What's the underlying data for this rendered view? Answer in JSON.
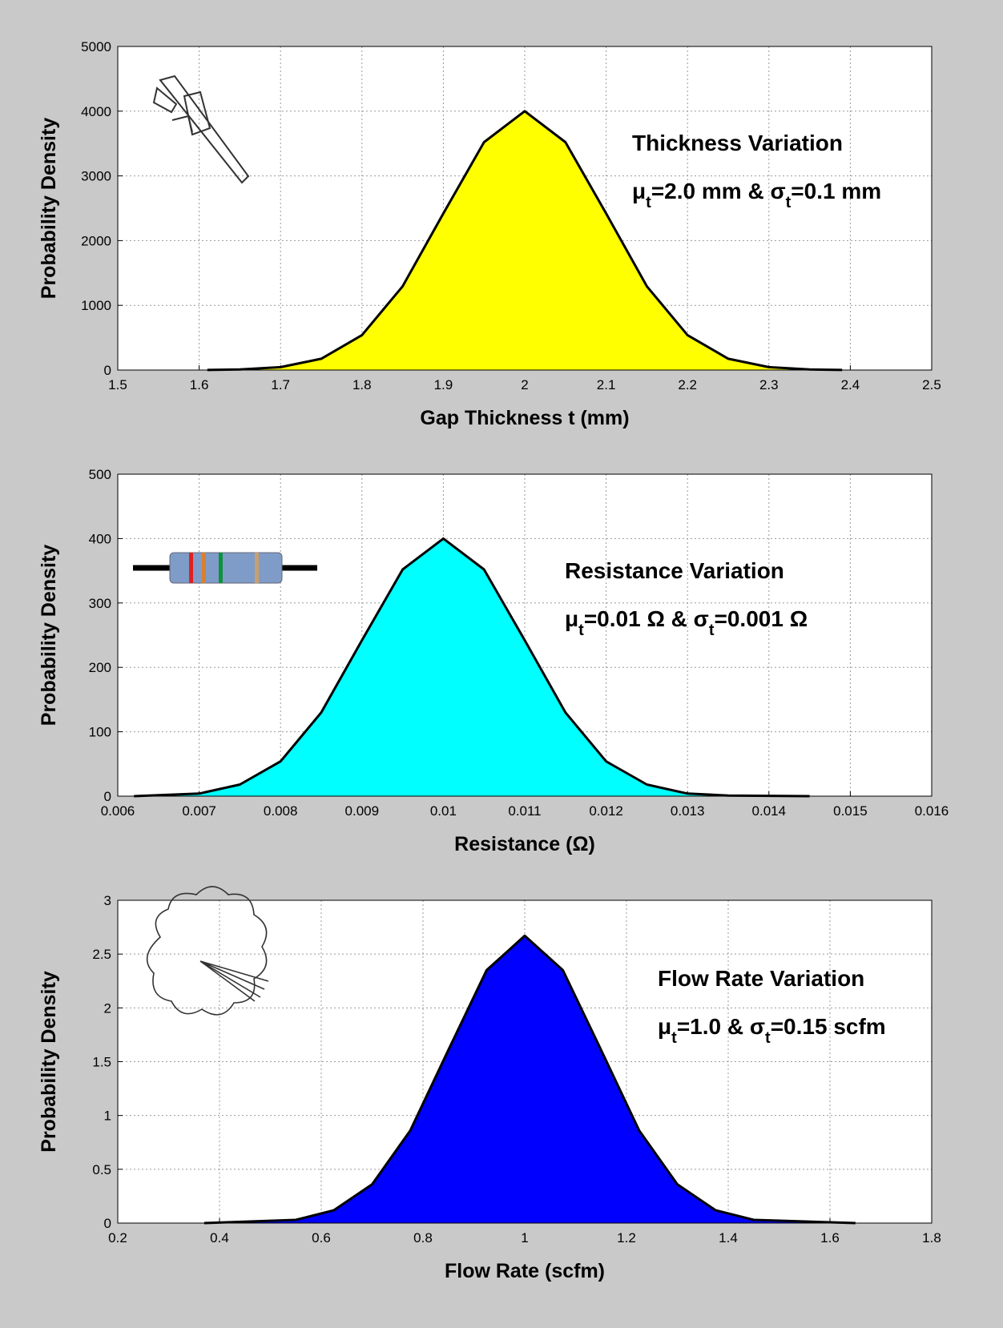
{
  "chart_data": [
    {
      "type": "area",
      "xlabel": "Gap Thickness t (mm)",
      "ylabel": "Probability Density",
      "annotation_title": "Thickness Variation",
      "annotation_parts": [
        "μ",
        "t",
        "=2.0 mm & σ",
        "t",
        "=0.1 mm"
      ],
      "x": [
        1.61,
        1.65,
        1.7,
        1.75,
        1.8,
        1.85,
        1.9,
        1.95,
        2.0,
        2.05,
        2.1,
        2.15,
        2.2,
        2.25,
        2.3,
        2.35,
        2.39
      ],
      "values": [
        1,
        9,
        44,
        175,
        540,
        1295,
        2420,
        3521,
        4000,
        3521,
        2420,
        1295,
        540,
        175,
        44,
        9,
        1
      ],
      "color": "#ffff00",
      "xlim": [
        1.5,
        2.5
      ],
      "xticks": [
        1.5,
        1.6,
        1.7,
        1.8,
        1.9,
        2,
        2.1,
        2.2,
        2.3,
        2.4,
        2.5
      ],
      "ylim": [
        0,
        5000
      ],
      "yticks": [
        0,
        1000,
        2000,
        3000,
        4000,
        5000
      ],
      "grid": true
    },
    {
      "type": "area",
      "xlabel": "Resistance (Ω)",
      "ylabel": "Probability Density",
      "annotation_title": "Resistance Variation",
      "annotation_parts": [
        "μ",
        "t",
        "=0.01 Ω & σ",
        "t",
        "=0.001 Ω"
      ],
      "x": [
        0.0062,
        0.007,
        0.0075,
        0.008,
        0.0085,
        0.009,
        0.0095,
        0.01,
        0.0105,
        0.011,
        0.0115,
        0.012,
        0.0125,
        0.013,
        0.0135,
        0.0145
      ],
      "values": [
        0,
        4,
        18,
        54,
        130,
        242,
        352,
        400,
        352,
        242,
        130,
        54,
        18,
        4,
        1,
        0
      ],
      "color": "#00ffff",
      "xlim": [
        0.006,
        0.016
      ],
      "xticks": [
        0.006,
        0.007,
        0.008,
        0.009,
        0.01,
        0.011,
        0.012,
        0.013,
        0.014,
        0.015,
        0.016
      ],
      "ylim": [
        0,
        500
      ],
      "yticks": [
        0,
        100,
        200,
        300,
        400,
        500
      ],
      "grid": true
    },
    {
      "type": "area",
      "xlabel": "Flow Rate (scfm)",
      "ylabel": "Probability Density",
      "annotation_title": "Flow Rate Variation",
      "annotation_parts": [
        "μ",
        "t",
        "=1.0  & σ",
        "t",
        "=0.15 scfm"
      ],
      "x": [
        0.37,
        0.55,
        0.625,
        0.7,
        0.775,
        0.85,
        0.925,
        1.0,
        1.075,
        1.15,
        1.225,
        1.3,
        1.375,
        1.45,
        1.65
      ],
      "values": [
        0,
        0.03,
        0.12,
        0.36,
        0.86,
        1.61,
        2.35,
        2.67,
        2.35,
        1.61,
        0.86,
        0.36,
        0.12,
        0.03,
        0
      ],
      "color": "#0000ff",
      "xlim": [
        0.2,
        1.8
      ],
      "xticks": [
        0.2,
        0.4,
        0.6,
        0.8,
        1,
        1.2,
        1.4,
        1.6,
        1.8
      ],
      "ylim": [
        0,
        3
      ],
      "yticks": [
        0,
        0.5,
        1,
        1.5,
        2,
        2.5,
        3
      ],
      "grid": true
    }
  ]
}
